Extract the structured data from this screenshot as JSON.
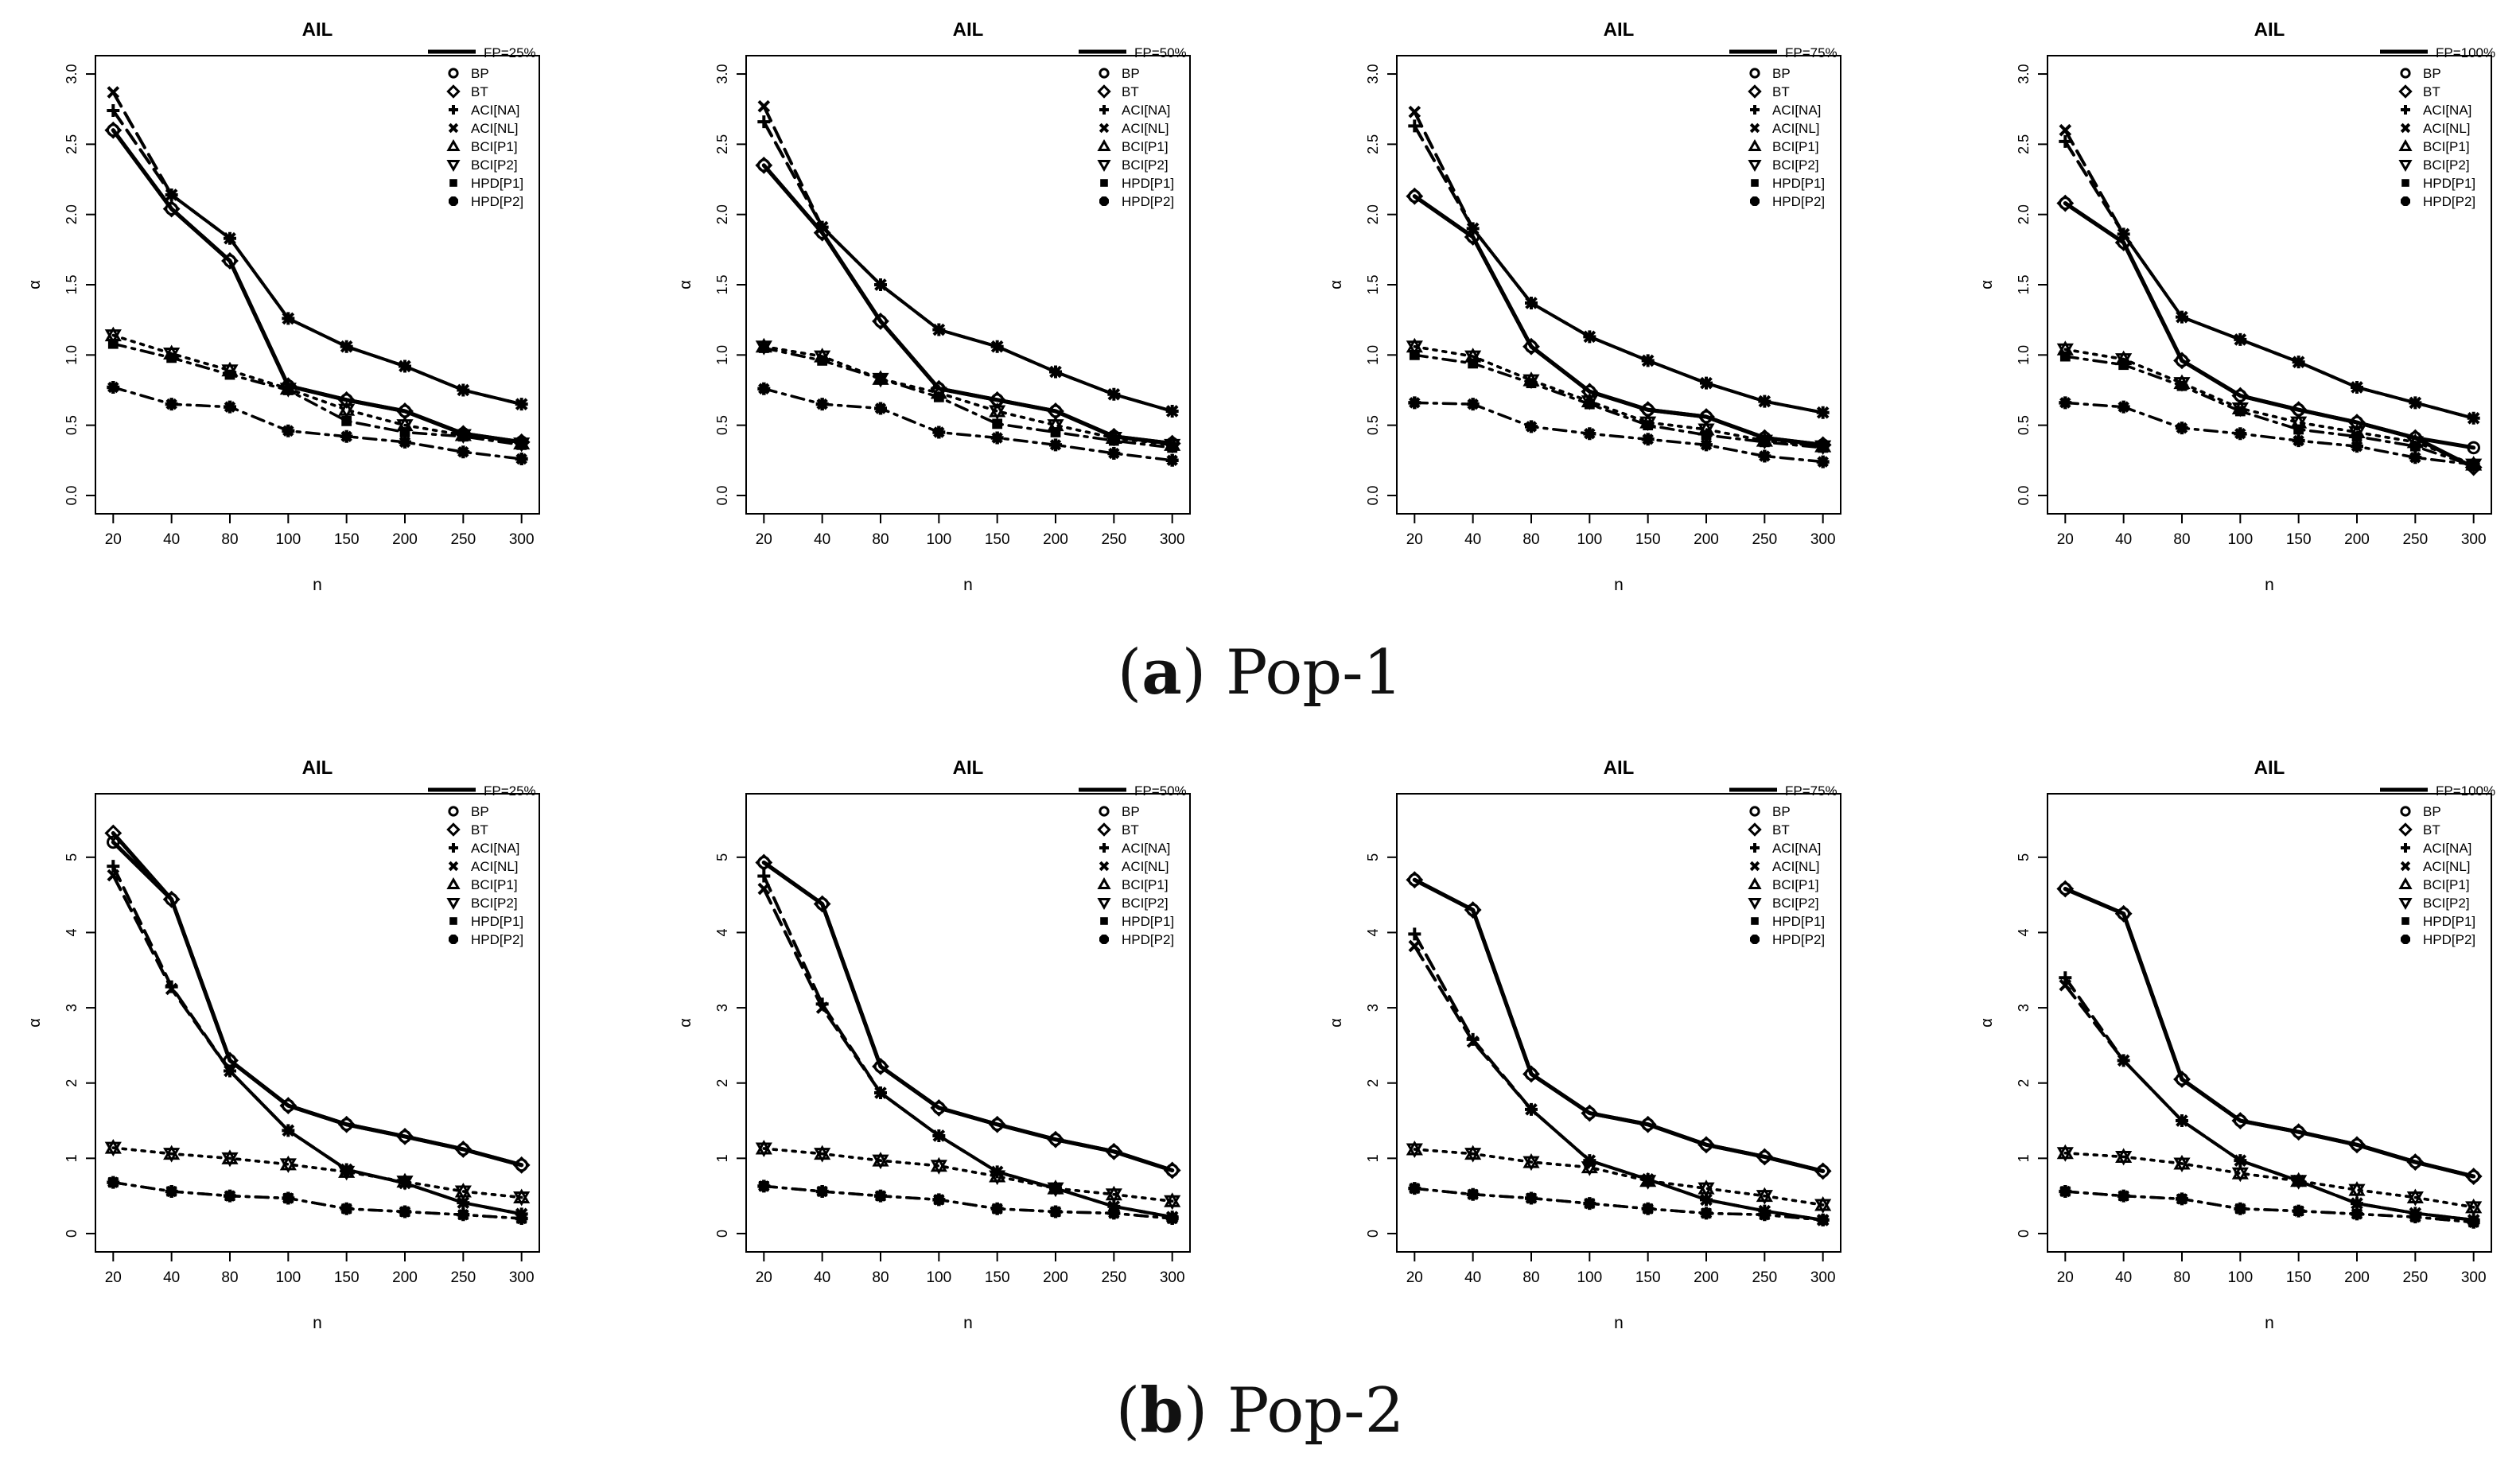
{
  "figure": {
    "caption_a": {
      "letter": "a",
      "label": "Pop-1"
    },
    "caption_b": {
      "letter": "b",
      "label": "Pop-2"
    }
  },
  "style": {
    "line_color": "#000000",
    "axis_color": "#000000",
    "background": "#ffffff"
  },
  "legend_methods": [
    "BP",
    "BT",
    "ACI[NA]",
    "ACI[NL]",
    "BCI[P1]",
    "BCI[P2]",
    "HPD[P1]",
    "HPD[P2]"
  ],
  "legend_markers": [
    "circle-open",
    "diamond-open",
    "plus",
    "cross",
    "triangle-open",
    "triangle-down-open",
    "square-filled",
    "star-filled"
  ],
  "chart_data": [
    {
      "type": "line",
      "group": "Pop-1",
      "title": "AIL",
      "fp_label": "FP=25%",
      "xlabel": "n",
      "ylabel": "α",
      "categories": [
        "20",
        "40",
        "80",
        "100",
        "150",
        "200",
        "250",
        "300"
      ],
      "ylim": [
        0,
        3
      ],
      "yticks": [
        "0.0",
        "0.5",
        "1.0",
        "1.5",
        "2.0",
        "2.5",
        "3.0"
      ],
      "series": [
        {
          "name": "BP",
          "values": [
            2.6,
            2.04,
            1.67,
            0.78,
            0.68,
            0.6,
            0.44,
            0.38
          ]
        },
        {
          "name": "BT",
          "values": [
            2.6,
            2.04,
            1.67,
            0.78,
            0.68,
            0.6,
            0.44,
            0.38
          ]
        },
        {
          "name": "ACI[NA]",
          "values": [
            2.74,
            2.14,
            1.83,
            1.26,
            1.06,
            0.92,
            0.75,
            0.65
          ]
        },
        {
          "name": "ACI[NL]",
          "values": [
            2.87,
            2.14,
            1.83,
            1.26,
            1.06,
            0.92,
            0.75,
            0.65
          ]
        },
        {
          "name": "BCI[P1]",
          "values": [
            1.14,
            1.01,
            0.89,
            0.76,
            0.61,
            0.5,
            0.43,
            0.37
          ]
        },
        {
          "name": "BCI[P2]",
          "values": [
            1.14,
            1.01,
            0.89,
            0.76,
            0.61,
            0.5,
            0.43,
            0.37
          ]
        },
        {
          "name": "HPD[P1]",
          "values": [
            1.08,
            0.98,
            0.86,
            0.75,
            0.53,
            0.45,
            0.42,
            0.36
          ]
        },
        {
          "name": "HPD[P2]",
          "values": [
            0.77,
            0.65,
            0.63,
            0.46,
            0.42,
            0.38,
            0.31,
            0.26
          ]
        }
      ]
    },
    {
      "type": "line",
      "group": "Pop-1",
      "title": "AIL",
      "fp_label": "FP=50%",
      "xlabel": "n",
      "ylabel": "α",
      "categories": [
        "20",
        "40",
        "80",
        "100",
        "150",
        "200",
        "250",
        "300"
      ],
      "ylim": [
        0,
        3
      ],
      "yticks": [
        "0.0",
        "0.5",
        "1.0",
        "1.5",
        "2.0",
        "2.5",
        "3.0"
      ],
      "series": [
        {
          "name": "BP",
          "values": [
            2.35,
            1.87,
            1.24,
            0.76,
            0.68,
            0.6,
            0.42,
            0.37
          ]
        },
        {
          "name": "BT",
          "values": [
            2.35,
            1.87,
            1.24,
            0.76,
            0.68,
            0.6,
            0.42,
            0.37
          ]
        },
        {
          "name": "ACI[NA]",
          "values": [
            2.66,
            1.91,
            1.5,
            1.18,
            1.06,
            0.88,
            0.72,
            0.6
          ]
        },
        {
          "name": "ACI[NL]",
          "values": [
            2.77,
            1.91,
            1.5,
            1.18,
            1.06,
            0.88,
            0.72,
            0.6
          ]
        },
        {
          "name": "BCI[P1]",
          "values": [
            1.06,
            0.99,
            0.83,
            0.73,
            0.6,
            0.5,
            0.41,
            0.36
          ]
        },
        {
          "name": "BCI[P2]",
          "values": [
            1.06,
            0.99,
            0.83,
            0.73,
            0.6,
            0.5,
            0.41,
            0.36
          ]
        },
        {
          "name": "HPD[P1]",
          "values": [
            1.05,
            0.96,
            0.83,
            0.7,
            0.51,
            0.45,
            0.39,
            0.34
          ]
        },
        {
          "name": "HPD[P2]",
          "values": [
            0.76,
            0.65,
            0.62,
            0.45,
            0.41,
            0.36,
            0.3,
            0.25
          ]
        }
      ]
    },
    {
      "type": "line",
      "group": "Pop-1",
      "title": "AIL",
      "fp_label": "FP=75%",
      "xlabel": "n",
      "ylabel": "α",
      "categories": [
        "20",
        "40",
        "80",
        "100",
        "150",
        "200",
        "250",
        "300"
      ],
      "ylim": [
        0,
        3
      ],
      "yticks": [
        "0.0",
        "0.5",
        "1.0",
        "1.5",
        "2.0",
        "2.5",
        "3.0"
      ],
      "series": [
        {
          "name": "BP",
          "values": [
            2.13,
            1.84,
            1.06,
            0.74,
            0.61,
            0.56,
            0.41,
            0.36
          ]
        },
        {
          "name": "BT",
          "values": [
            2.13,
            1.84,
            1.06,
            0.74,
            0.61,
            0.56,
            0.41,
            0.36
          ]
        },
        {
          "name": "ACI[NA]",
          "values": [
            2.63,
            1.9,
            1.37,
            1.13,
            0.96,
            0.8,
            0.67,
            0.59
          ]
        },
        {
          "name": "ACI[NL]",
          "values": [
            2.73,
            1.9,
            1.37,
            1.13,
            0.96,
            0.8,
            0.67,
            0.59
          ]
        },
        {
          "name": "BCI[P1]",
          "values": [
            1.06,
            0.99,
            0.82,
            0.67,
            0.52,
            0.47,
            0.39,
            0.35
          ]
        },
        {
          "name": "BCI[P2]",
          "values": [
            1.06,
            0.99,
            0.82,
            0.67,
            0.52,
            0.47,
            0.39,
            0.35
          ]
        },
        {
          "name": "HPD[P1]",
          "values": [
            1.0,
            0.94,
            0.8,
            0.65,
            0.5,
            0.43,
            0.38,
            0.34
          ]
        },
        {
          "name": "HPD[P2]",
          "values": [
            0.66,
            0.65,
            0.49,
            0.44,
            0.4,
            0.36,
            0.28,
            0.24
          ]
        }
      ]
    },
    {
      "type": "line",
      "group": "Pop-1",
      "title": "AIL",
      "fp_label": "FP=100%",
      "xlabel": "n",
      "ylabel": "α",
      "categories": [
        "20",
        "40",
        "80",
        "100",
        "150",
        "200",
        "250",
        "300"
      ],
      "ylim": [
        0,
        3
      ],
      "yticks": [
        "0.0",
        "0.5",
        "1.0",
        "1.5",
        "2.0",
        "2.5",
        "3.0"
      ],
      "series": [
        {
          "name": "BP",
          "values": [
            2.08,
            1.8,
            0.96,
            0.71,
            0.61,
            0.52,
            0.41,
            0.34
          ]
        },
        {
          "name": "BT",
          "values": [
            2.08,
            1.8,
            0.96,
            0.71,
            0.61,
            0.52,
            0.41,
            0.2
          ]
        },
        {
          "name": "ACI[NA]",
          "values": [
            2.52,
            1.86,
            1.27,
            1.11,
            0.95,
            0.77,
            0.66,
            0.55
          ]
        },
        {
          "name": "ACI[NL]",
          "values": [
            2.6,
            1.86,
            1.27,
            1.11,
            0.95,
            0.77,
            0.66,
            0.55
          ]
        },
        {
          "name": "BCI[P1]",
          "values": [
            1.04,
            0.97,
            0.8,
            0.62,
            0.52,
            0.45,
            0.38,
            0.22
          ]
        },
        {
          "name": "BCI[P2]",
          "values": [
            1.04,
            0.97,
            0.8,
            0.62,
            0.52,
            0.45,
            0.38,
            0.22
          ]
        },
        {
          "name": "HPD[P1]",
          "values": [
            0.99,
            0.93,
            0.78,
            0.6,
            0.47,
            0.42,
            0.35,
            0.21
          ]
        },
        {
          "name": "HPD[P2]",
          "values": [
            0.66,
            0.63,
            0.48,
            0.44,
            0.39,
            0.35,
            0.27,
            0.22
          ]
        }
      ]
    },
    {
      "type": "line",
      "group": "Pop-2",
      "title": "AIL",
      "fp_label": "FP=25%",
      "xlabel": "n",
      "ylabel": "α",
      "categories": [
        "20",
        "40",
        "80",
        "100",
        "150",
        "200",
        "250",
        "300"
      ],
      "ylim": [
        0,
        5.6
      ],
      "yticks": [
        "0",
        "1",
        "2",
        "3",
        "4",
        "5"
      ],
      "series": [
        {
          "name": "BP",
          "values": [
            5.2,
            4.44,
            2.3,
            1.7,
            1.45,
            1.29,
            1.12,
            0.91
          ]
        },
        {
          "name": "BT",
          "values": [
            5.32,
            4.44,
            2.3,
            1.7,
            1.45,
            1.29,
            1.12,
            0.91
          ]
        },
        {
          "name": "ACI[NA]",
          "values": [
            4.88,
            3.28,
            2.16,
            1.37,
            0.85,
            0.67,
            0.41,
            0.26
          ]
        },
        {
          "name": "ACI[NL]",
          "values": [
            4.76,
            3.25,
            2.16,
            1.37,
            0.85,
            0.67,
            0.41,
            0.26
          ]
        },
        {
          "name": "BCI[P1]",
          "values": [
            1.14,
            1.06,
            1.0,
            0.92,
            0.82,
            0.69,
            0.56,
            0.48
          ]
        },
        {
          "name": "BCI[P2]",
          "values": [
            1.14,
            1.06,
            1.0,
            0.92,
            0.82,
            0.69,
            0.56,
            0.48
          ]
        },
        {
          "name": "HPD[P1]",
          "values": [
            0.68,
            0.56,
            0.5,
            0.47,
            0.33,
            0.29,
            0.25,
            0.2
          ]
        },
        {
          "name": "HPD[P2]",
          "values": [
            0.68,
            0.56,
            0.5,
            0.47,
            0.33,
            0.29,
            0.25,
            0.2
          ]
        }
      ]
    },
    {
      "type": "line",
      "group": "Pop-2",
      "title": "AIL",
      "fp_label": "FP=50%",
      "xlabel": "n",
      "ylabel": "α",
      "categories": [
        "20",
        "40",
        "80",
        "100",
        "150",
        "200",
        "250",
        "300"
      ],
      "ylim": [
        0,
        5.6
      ],
      "yticks": [
        "0",
        "1",
        "2",
        "3",
        "4",
        "5"
      ],
      "series": [
        {
          "name": "BP",
          "values": [
            4.93,
            4.38,
            2.22,
            1.67,
            1.45,
            1.25,
            1.09,
            0.84
          ]
        },
        {
          "name": "BT",
          "values": [
            4.93,
            4.38,
            2.22,
            1.67,
            1.45,
            1.25,
            1.09,
            0.84
          ]
        },
        {
          "name": "ACI[NA]",
          "values": [
            4.75,
            3.05,
            1.87,
            1.3,
            0.82,
            0.6,
            0.36,
            0.22
          ]
        },
        {
          "name": "ACI[NL]",
          "values": [
            4.58,
            3.0,
            1.87,
            1.3,
            0.82,
            0.6,
            0.36,
            0.22
          ]
        },
        {
          "name": "BCI[P1]",
          "values": [
            1.13,
            1.06,
            0.97,
            0.9,
            0.76,
            0.6,
            0.52,
            0.43
          ]
        },
        {
          "name": "BCI[P2]",
          "values": [
            1.13,
            1.06,
            0.97,
            0.9,
            0.76,
            0.6,
            0.52,
            0.43
          ]
        },
        {
          "name": "HPD[P1]",
          "values": [
            0.63,
            0.56,
            0.5,
            0.45,
            0.33,
            0.29,
            0.27,
            0.2
          ]
        },
        {
          "name": "HPD[P2]",
          "values": [
            0.63,
            0.56,
            0.5,
            0.45,
            0.33,
            0.29,
            0.27,
            0.2
          ]
        }
      ]
    },
    {
      "type": "line",
      "group": "Pop-2",
      "title": "AIL",
      "fp_label": "FP=75%",
      "xlabel": "n",
      "ylabel": "α",
      "categories": [
        "20",
        "40",
        "80",
        "100",
        "150",
        "200",
        "250",
        "300"
      ],
      "ylim": [
        0,
        5.6
      ],
      "yticks": [
        "0",
        "1",
        "2",
        "3",
        "4",
        "5"
      ],
      "series": [
        {
          "name": "BP",
          "values": [
            4.7,
            4.3,
            2.12,
            1.6,
            1.45,
            1.18,
            1.02,
            0.83
          ]
        },
        {
          "name": "BT",
          "values": [
            4.7,
            4.3,
            2.12,
            1.6,
            1.45,
            1.18,
            1.02,
            0.83
          ]
        },
        {
          "name": "ACI[NA]",
          "values": [
            3.98,
            2.58,
            1.65,
            0.97,
            0.72,
            0.45,
            0.3,
            0.18
          ]
        },
        {
          "name": "ACI[NL]",
          "values": [
            3.82,
            2.55,
            1.65,
            0.97,
            0.72,
            0.45,
            0.3,
            0.18
          ]
        },
        {
          "name": "BCI[P1]",
          "values": [
            1.12,
            1.06,
            0.95,
            0.88,
            0.7,
            0.6,
            0.5,
            0.38
          ]
        },
        {
          "name": "BCI[P2]",
          "values": [
            1.12,
            1.06,
            0.95,
            0.88,
            0.7,
            0.6,
            0.5,
            0.38
          ]
        },
        {
          "name": "HPD[P1]",
          "values": [
            0.6,
            0.52,
            0.47,
            0.4,
            0.33,
            0.27,
            0.25,
            0.18
          ]
        },
        {
          "name": "HPD[P2]",
          "values": [
            0.6,
            0.52,
            0.47,
            0.4,
            0.33,
            0.27,
            0.25,
            0.18
          ]
        }
      ]
    },
    {
      "type": "line",
      "group": "Pop-2",
      "title": "AIL",
      "fp_label": "FP=100%",
      "xlabel": "n",
      "ylabel": "α",
      "categories": [
        "20",
        "40",
        "80",
        "100",
        "150",
        "200",
        "250",
        "300"
      ],
      "ylim": [
        0,
        5.6
      ],
      "yticks": [
        "0",
        "1",
        "2",
        "3",
        "4",
        "5"
      ],
      "series": [
        {
          "name": "BP",
          "values": [
            4.58,
            4.25,
            2.05,
            1.5,
            1.35,
            1.18,
            0.95,
            0.76
          ]
        },
        {
          "name": "BT",
          "values": [
            4.58,
            4.25,
            2.05,
            1.5,
            1.35,
            1.18,
            0.95,
            0.76
          ]
        },
        {
          "name": "ACI[NA]",
          "values": [
            3.4,
            2.3,
            1.5,
            0.97,
            0.7,
            0.4,
            0.27,
            0.18
          ]
        },
        {
          "name": "ACI[NL]",
          "values": [
            3.3,
            2.3,
            1.5,
            0.97,
            0.7,
            0.4,
            0.27,
            0.18
          ]
        },
        {
          "name": "BCI[P1]",
          "values": [
            1.07,
            1.02,
            0.93,
            0.8,
            0.7,
            0.58,
            0.48,
            0.35
          ]
        },
        {
          "name": "BCI[P2]",
          "values": [
            1.07,
            1.02,
            0.93,
            0.8,
            0.7,
            0.58,
            0.48,
            0.35
          ]
        },
        {
          "name": "HPD[P1]",
          "values": [
            0.56,
            0.5,
            0.46,
            0.33,
            0.3,
            0.26,
            0.22,
            0.15
          ]
        },
        {
          "name": "HPD[P2]",
          "values": [
            0.56,
            0.5,
            0.46,
            0.33,
            0.3,
            0.26,
            0.22,
            0.15
          ]
        }
      ]
    }
  ]
}
